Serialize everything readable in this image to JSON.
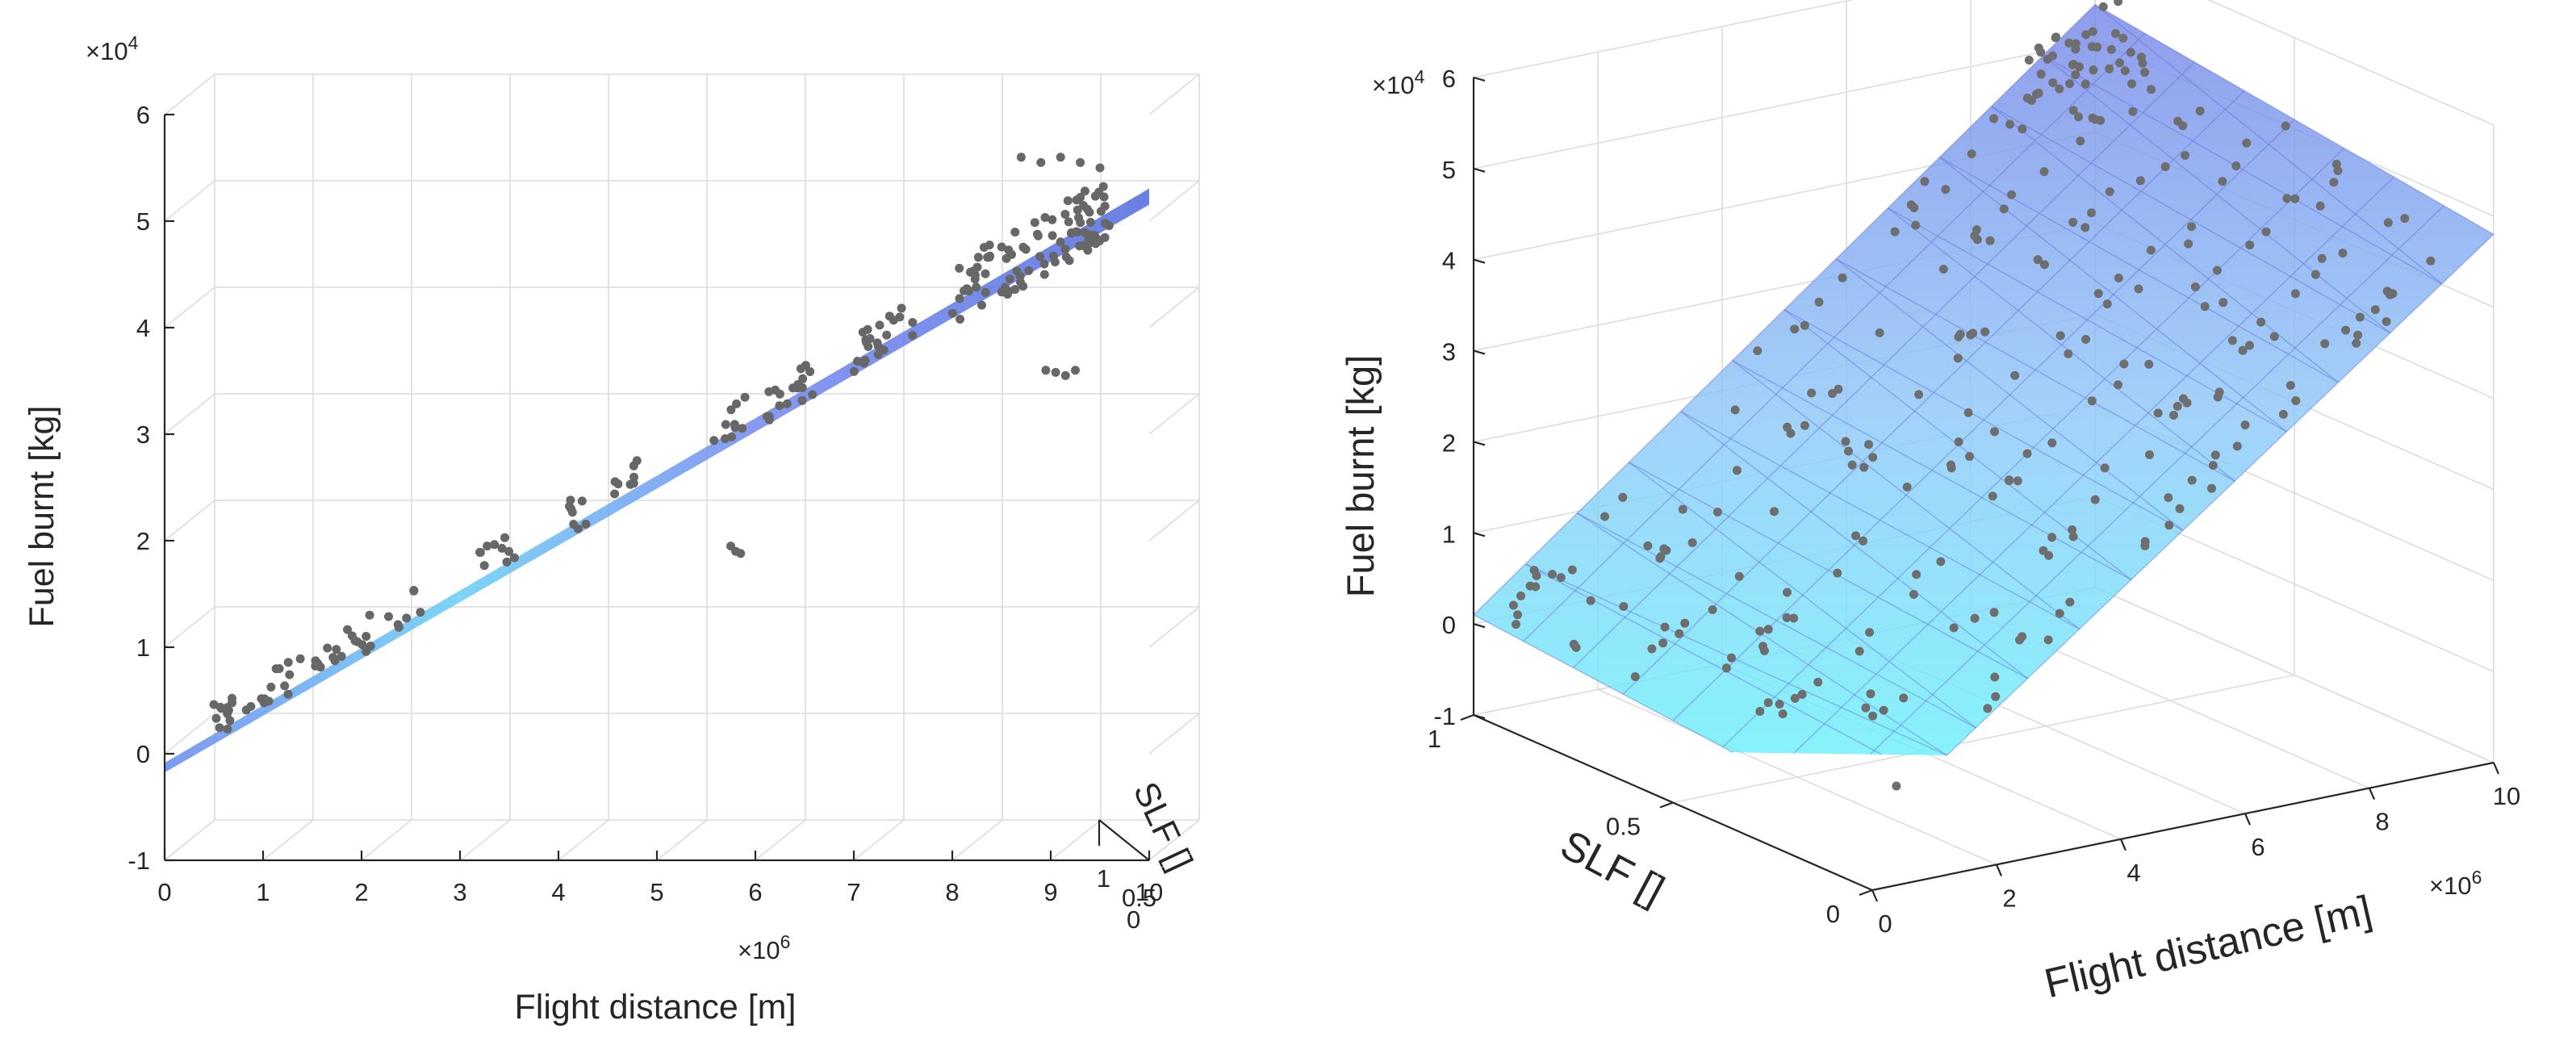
{
  "chart_data": [
    {
      "type": "3d-scatter-surface",
      "view": "side (looking along SLF axis)",
      "xlabel": "Flight distance [m]",
      "x_exponent_base": "×10",
      "x_exponent_power": "6",
      "ylabel": "SLF []",
      "zlabel": "Fuel burnt [kg]",
      "z_exponent_base": "×10",
      "z_exponent_power": "4",
      "xlim": [
        0,
        10
      ],
      "zlim": [
        -1,
        6
      ],
      "x_ticks": [
        "0",
        "1",
        "2",
        "3",
        "4",
        "5",
        "6",
        "7",
        "8",
        "9",
        "10"
      ],
      "y_ticks": [
        "0",
        "0.5",
        "1"
      ],
      "z_ticks": [
        "-1",
        "0",
        "1",
        "2",
        "3",
        "4",
        "5",
        "6"
      ],
      "surface": {
        "z_at_x0": -0.1,
        "z_at_x10": 5.2
      }
    },
    {
      "type": "3d-scatter-surface",
      "view": "oblique",
      "xlabel": "Flight distance [m]",
      "x_exponent_base": "×10",
      "x_exponent_power": "6",
      "ylabel": "SLF []",
      "zlabel": "Fuel burnt [kg]",
      "z_exponent_base": "×10",
      "z_exponent_power": "4",
      "xlim": [
        0,
        10
      ],
      "ylim": [
        0,
        1
      ],
      "zlim": [
        -1,
        6
      ],
      "x_ticks": [
        "0",
        "2",
        "4",
        "6",
        "8",
        "10"
      ],
      "y_ticks": [
        "0",
        "0.5",
        "1"
      ],
      "z_ticks": [
        "-1",
        "0",
        "1",
        "2",
        "3",
        "4",
        "5",
        "6"
      ],
      "surface": {
        "z_at_x0_slf0": -0.3,
        "z_at_x0_slf1": 0.1,
        "z_at_x10_slf0": 4.8,
        "z_at_x10_slf1": 5.4
      }
    }
  ]
}
